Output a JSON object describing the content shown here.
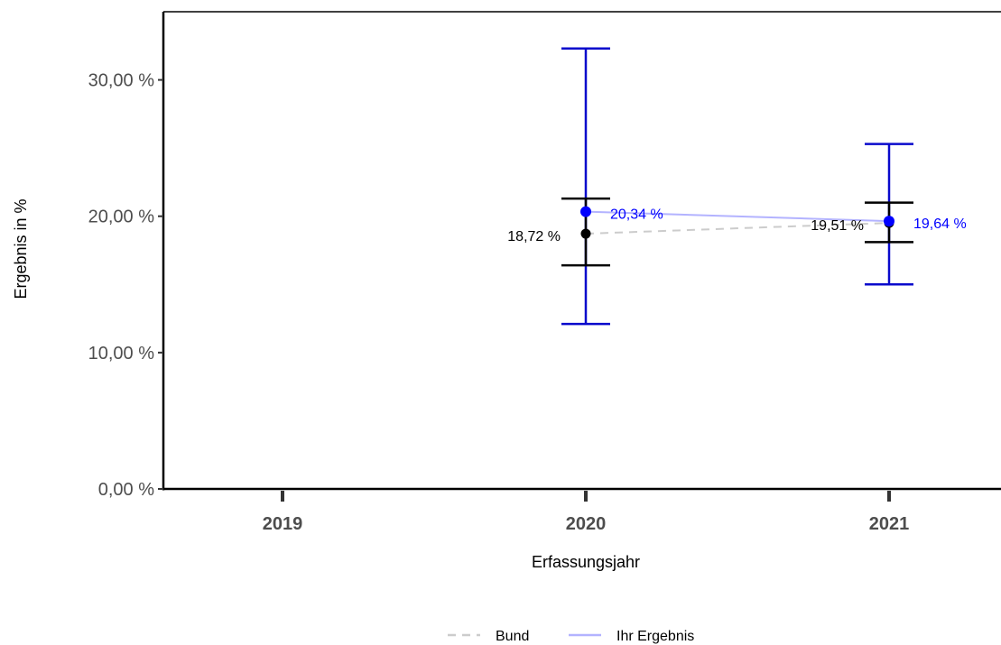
{
  "chart_data": {
    "type": "line",
    "xlabel": "Erfassungsjahr",
    "ylabel": "Ergebnis in %",
    "categories": [
      "2019",
      "2020",
      "2021"
    ],
    "ylim": [
      0,
      35
    ],
    "yticks": [
      0,
      10,
      20,
      30
    ],
    "ytick_labels": [
      "0,00 %",
      "10,00 %",
      "20,00 %",
      "30,00 %"
    ],
    "grid": false,
    "legend_position": "bottom",
    "series": [
      {
        "name": "Bund",
        "color": "#000000",
        "line_color": "#cccccc",
        "line_style": "dashed",
        "points": [
          {
            "x": "2020",
            "y": 18.72,
            "label": "18,72 %",
            "lower": 16.4,
            "upper": 21.3
          },
          {
            "x": "2021",
            "y": 19.51,
            "label": "19,51 %",
            "lower": 18.1,
            "upper": 21.0
          }
        ]
      },
      {
        "name": "Ihr Ergebnis",
        "color": "#0000ff",
        "errorbar_color": "#0a0acc",
        "line_color": "#b3b3ff",
        "line_style": "solid",
        "points": [
          {
            "x": "2020",
            "y": 20.34,
            "label": "20,34 %",
            "lower": 12.1,
            "upper": 32.3
          },
          {
            "x": "2021",
            "y": 19.64,
            "label": "19,64 %",
            "lower": 15.0,
            "upper": 25.3
          }
        ]
      }
    ]
  }
}
